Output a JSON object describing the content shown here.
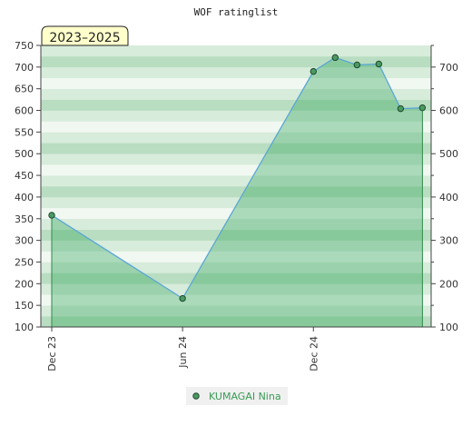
{
  "colors": {
    "band_light": "#f1f8f2",
    "band_mid": "#d7ecdb",
    "band_dark": "#b9ddc1",
    "area_fill": "#3aa860",
    "line": "#5aa6d6",
    "marker_fill": "#4c9a63",
    "marker_stroke": "#1e4a2b",
    "drop_line": "#2e8b4a",
    "period_bg": "#ffffcc",
    "legend_bg": "#f0f0f0"
  },
  "chart_data": {
    "type": "line",
    "title": "WOF ratinglist",
    "period_label": "2023–2025",
    "ylim": [
      100,
      750
    ],
    "y_ticks_left": [
      "100",
      "150",
      "200",
      "250",
      "300",
      "350",
      "400",
      "450",
      "500",
      "550",
      "600",
      "650",
      "700",
      "750"
    ],
    "y_ticks_right": [
      "100",
      "200",
      "300",
      "400",
      "500",
      "600",
      "700"
    ],
    "x_ticks": [
      {
        "label": "Dec 23",
        "month_index": 0
      },
      {
        "label": "Jun 24",
        "month_index": 6
      },
      {
        "label": "Dec 24",
        "month_index": 12
      }
    ],
    "x_range_months": [
      -0.5,
      17.4
    ],
    "series": [
      {
        "name": "KUMAGAI Nina",
        "points": [
          {
            "month_index": 0,
            "value": 358
          },
          {
            "month_index": 6,
            "value": 166
          },
          {
            "month_index": 12,
            "value": 690
          },
          {
            "month_index": 13,
            "value": 722
          },
          {
            "month_index": 14,
            "value": 705
          },
          {
            "month_index": 15,
            "value": 707
          },
          {
            "month_index": 16,
            "value": 604
          },
          {
            "month_index": 17,
            "value": 606
          }
        ]
      }
    ]
  }
}
